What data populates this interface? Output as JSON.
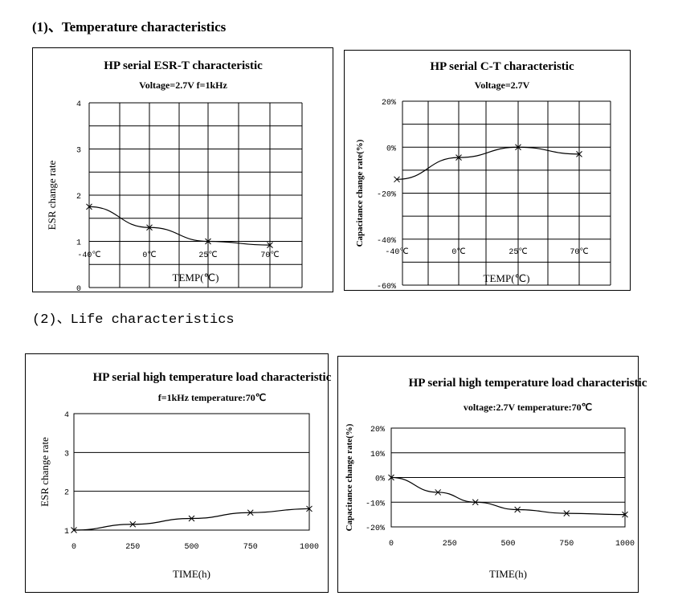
{
  "headings": {
    "temperature": "(1)、Temperature characteristics",
    "life": "(2)、Life characteristics"
  },
  "chart_data": [
    {
      "id": "esr_t",
      "type": "line",
      "title": "HP serial ESR-T characteristic",
      "subtitle": "Voltage=2.7V  f=1kHz",
      "xlabel": "TEMP(℃)",
      "ylabel": "ESR change rate",
      "categories": [
        "-40℃",
        "0℃",
        "25℃",
        "70℃"
      ],
      "x": [
        -40,
        0,
        25,
        70
      ],
      "series": [
        {
          "name": "ESR",
          "values": [
            1.75,
            1.3,
            1.0,
            0.92
          ]
        }
      ],
      "xlim": [
        -40,
        95
      ],
      "ylim": [
        0,
        4
      ],
      "yticks": [
        0,
        1,
        2,
        3,
        4
      ],
      "ytick_labels": [
        "0",
        "1",
        "2",
        "3",
        "4"
      ],
      "grid": true
    },
    {
      "id": "c_t",
      "type": "line",
      "title": "HP serial C-T characteristic",
      "subtitle": "Voltage=2.7V",
      "xlabel": "TEMP(℃)",
      "ylabel": "Capacitance change rate(%)",
      "categories": [
        "-40℃",
        "0℃",
        "25℃",
        "70℃"
      ],
      "x": [
        -40,
        0,
        25,
        70
      ],
      "series": [
        {
          "name": "Capacitance",
          "values": [
            -14,
            -4.5,
            0,
            -3
          ]
        }
      ],
      "xlim": [
        -40,
        95
      ],
      "ylim": [
        -60,
        20
      ],
      "yticks": [
        -60,
        -40,
        -20,
        0,
        20
      ],
      "ytick_labels": [
        "-60%",
        "-40%",
        "-20%",
        "0%",
        "20%"
      ],
      "grid": true
    },
    {
      "id": "esr_life",
      "type": "line",
      "title": "HP serial high temperature load characteristic",
      "subtitle": "f=1kHz    temperature:70℃",
      "xlabel": "TIME(h)",
      "ylabel": "ESR change rate",
      "x": [
        0,
        250,
        500,
        750,
        1000
      ],
      "xtick_labels": [
        "0",
        "250",
        "500",
        "750",
        "1000"
      ],
      "series": [
        {
          "name": "ESR",
          "values": [
            1.0,
            1.15,
            1.3,
            1.45,
            1.55
          ]
        }
      ],
      "xlim": [
        0,
        1000
      ],
      "ylim": [
        1,
        4
      ],
      "yticks": [
        1,
        2,
        3,
        4
      ],
      "ytick_labels": [
        "1",
        "2",
        "3",
        "4"
      ],
      "grid": "horizontal"
    },
    {
      "id": "c_life",
      "type": "line",
      "title": "HP serial high temperature load characteristic",
      "subtitle": "voltage:2.7V  temperature:70℃",
      "xlabel": "TIME(h)",
      "ylabel": "Capacitance change rate(%)",
      "x": [
        0,
        200,
        360,
        540,
        750,
        1000
      ],
      "xticks": [
        0,
        250,
        500,
        750,
        1000
      ],
      "xtick_labels": [
        "0",
        "250",
        "500",
        "750",
        "1000"
      ],
      "series": [
        {
          "name": "Capacitance",
          "values": [
            0,
            -6,
            -10,
            -13,
            -14.5,
            -15
          ]
        }
      ],
      "xlim": [
        0,
        1000
      ],
      "ylim": [
        -20,
        20
      ],
      "yticks": [
        -20,
        -10,
        0,
        10,
        20
      ],
      "ytick_labels": [
        "-20%",
        "-10%",
        "0%",
        "10%",
        "20%"
      ],
      "grid": "horizontal"
    }
  ]
}
